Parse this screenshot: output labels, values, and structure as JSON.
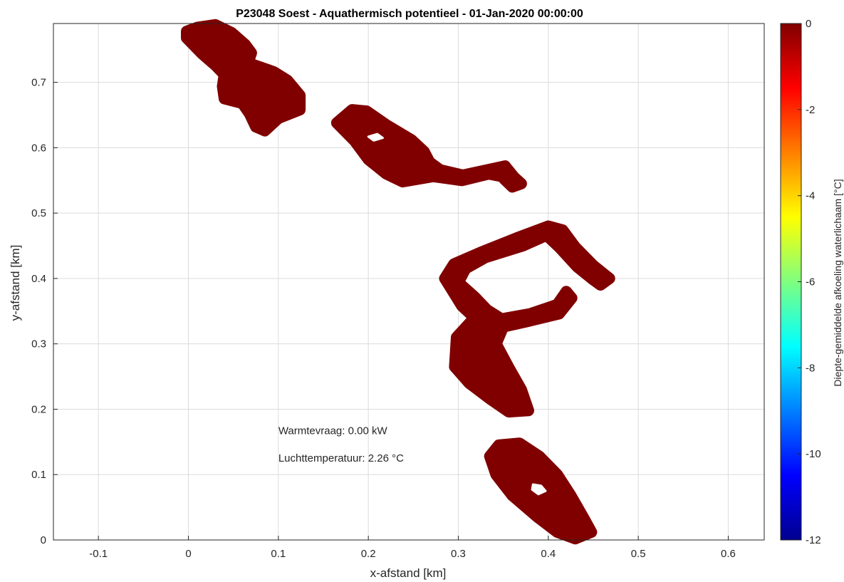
{
  "chart_data": {
    "type": "map",
    "title": "P23048 Soest - Aquathermisch potentieel - 01-Jan-2020 00:00:00",
    "xlabel": "x-afstand [km]",
    "ylabel": "y-afstand [km]",
    "xlim": [
      -0.15,
      0.64
    ],
    "ylim": [
      0,
      0.79
    ],
    "xticks": [
      -0.1,
      0,
      0.1,
      0.2,
      0.3,
      0.4,
      0.5,
      0.6
    ],
    "xtick_labels": [
      "-0.1",
      "0",
      "0.1",
      "0.2",
      "0.3",
      "0.4",
      "0.5",
      "0.6"
    ],
    "yticks": [
      0,
      0.1,
      0.2,
      0.3,
      0.4,
      0.5,
      0.6,
      0.7
    ],
    "ytick_labels": [
      "0",
      "0.1",
      "0.2",
      "0.3",
      "0.4",
      "0.5",
      "0.6",
      "0.7"
    ],
    "grid": true,
    "fill_color": "#800000",
    "colorbar": {
      "label": "Diepte-gemiddelde afkoeling waterlichaam [°C]",
      "range": [
        -12,
        0
      ],
      "ticks": [
        0,
        -2,
        -4,
        -6,
        -8,
        -10,
        -12
      ],
      "tick_labels": [
        "0",
        "-2",
        "-4",
        "-6",
        "-8",
        "-10",
        "-12"
      ],
      "colormap": "jet"
    },
    "annotations": [
      {
        "text": "Warmtevraag: 0.00 kW",
        "x": 0.1,
        "y": 0.162
      },
      {
        "text": "Luchttemperatuur: 2.26 °C",
        "x": 0.1,
        "y": 0.12
      }
    ],
    "water_bodies": [
      [
        [
          -0.002,
          0.778
        ],
        [
          0.01,
          0.784
        ],
        [
          0.03,
          0.788
        ],
        [
          0.048,
          0.776
        ],
        [
          0.063,
          0.758
        ],
        [
          0.07,
          0.745
        ],
        [
          0.068,
          0.737
        ],
        [
          0.056,
          0.74
        ],
        [
          0.07,
          0.728
        ],
        [
          0.095,
          0.716
        ],
        [
          0.11,
          0.703
        ],
        [
          0.124,
          0.68
        ],
        [
          0.124,
          0.658
        ],
        [
          0.1,
          0.645
        ],
        [
          0.085,
          0.626
        ],
        [
          0.075,
          0.632
        ],
        [
          0.068,
          0.652
        ],
        [
          0.06,
          0.668
        ],
        [
          0.04,
          0.675
        ],
        [
          0.038,
          0.694
        ],
        [
          0.04,
          0.712
        ],
        [
          0.03,
          0.726
        ],
        [
          0.015,
          0.744
        ],
        [
          -0.002,
          0.768
        ]
      ],
      [
        [
          0.165,
          0.638
        ],
        [
          0.182,
          0.658
        ],
        [
          0.198,
          0.656
        ],
        [
          0.22,
          0.635
        ],
        [
          0.248,
          0.612
        ],
        [
          0.262,
          0.594
        ],
        [
          0.268,
          0.578
        ],
        [
          0.28,
          0.566
        ],
        [
          0.305,
          0.558
        ],
        [
          0.332,
          0.566
        ],
        [
          0.352,
          0.572
        ],
        [
          0.362,
          0.555
        ],
        [
          0.37,
          0.545
        ],
        [
          0.36,
          0.54
        ],
        [
          0.348,
          0.556
        ],
        [
          0.334,
          0.56
        ],
        [
          0.304,
          0.55
        ],
        [
          0.272,
          0.556
        ],
        [
          0.238,
          0.548
        ],
        [
          0.22,
          0.56
        ],
        [
          0.2,
          0.582
        ],
        [
          0.185,
          0.61
        ]
      ],
      [
        [
          0.285,
          0.4
        ],
        [
          0.295,
          0.422
        ],
        [
          0.325,
          0.44
        ],
        [
          0.365,
          0.462
        ],
        [
          0.4,
          0.48
        ],
        [
          0.416,
          0.474
        ],
        [
          0.43,
          0.448
        ],
        [
          0.45,
          0.42
        ],
        [
          0.468,
          0.4
        ],
        [
          0.458,
          0.39
        ],
        [
          0.45,
          0.398
        ],
        [
          0.432,
          0.418
        ],
        [
          0.412,
          0.448
        ],
        [
          0.398,
          0.466
        ],
        [
          0.372,
          0.45
        ],
        [
          0.33,
          0.432
        ],
        [
          0.308,
          0.415
        ],
        [
          0.3,
          0.394
        ],
        [
          0.318,
          0.372
        ],
        [
          0.332,
          0.352
        ],
        [
          0.348,
          0.338
        ],
        [
          0.38,
          0.346
        ],
        [
          0.41,
          0.36
        ],
        [
          0.42,
          0.38
        ],
        [
          0.426,
          0.37
        ],
        [
          0.412,
          0.346
        ],
        [
          0.376,
          0.334
        ],
        [
          0.35,
          0.326
        ],
        [
          0.342,
          0.3
        ],
        [
          0.356,
          0.264
        ],
        [
          0.37,
          0.23
        ],
        [
          0.378,
          0.198
        ],
        [
          0.356,
          0.196
        ],
        [
          0.336,
          0.215
        ],
        [
          0.312,
          0.24
        ],
        [
          0.296,
          0.265
        ],
        [
          0.298,
          0.31
        ],
        [
          0.318,
          0.34
        ],
        [
          0.304,
          0.358
        ]
      ],
      [
        [
          0.335,
          0.128
        ],
        [
          0.345,
          0.145
        ],
        [
          0.368,
          0.148
        ],
        [
          0.39,
          0.128
        ],
        [
          0.41,
          0.1
        ],
        [
          0.425,
          0.068
        ],
        [
          0.44,
          0.032
        ],
        [
          0.448,
          0.012
        ],
        [
          0.43,
          0.002
        ],
        [
          0.41,
          0.012
        ],
        [
          0.388,
          0.035
        ],
        [
          0.36,
          0.068
        ],
        [
          0.342,
          0.1
        ]
      ]
    ],
    "holes": [
      [
        [
          0.2,
          0.617
        ],
        [
          0.21,
          0.621
        ],
        [
          0.216,
          0.615
        ],
        [
          0.206,
          0.611
        ]
      ],
      [
        [
          0.383,
          0.085
        ],
        [
          0.392,
          0.083
        ],
        [
          0.397,
          0.075
        ],
        [
          0.389,
          0.07
        ],
        [
          0.382,
          0.077
        ]
      ]
    ]
  }
}
